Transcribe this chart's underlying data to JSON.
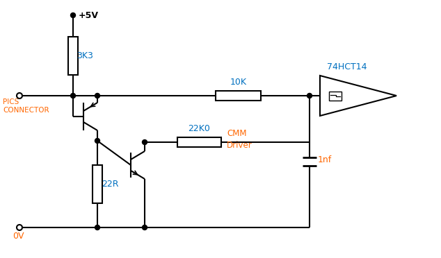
{
  "bg_color": "#ffffff",
  "line_color": "#000000",
  "blue": "#0070C0",
  "orange": "#FF6600",
  "figsize": [
    6.34,
    3.72
  ],
  "dpi": 100,
  "labels": {
    "plus5v": "+5V",
    "pics_connector": "PICS\nCONNECTOR",
    "r3k3": "3K3",
    "r10k": "10K",
    "r22k0": "22K0",
    "r22r": "22R",
    "c1nf": "1nf",
    "cmm_driver": "CMM\nDriver",
    "ic": "74HCT14",
    "ov": "0V"
  }
}
